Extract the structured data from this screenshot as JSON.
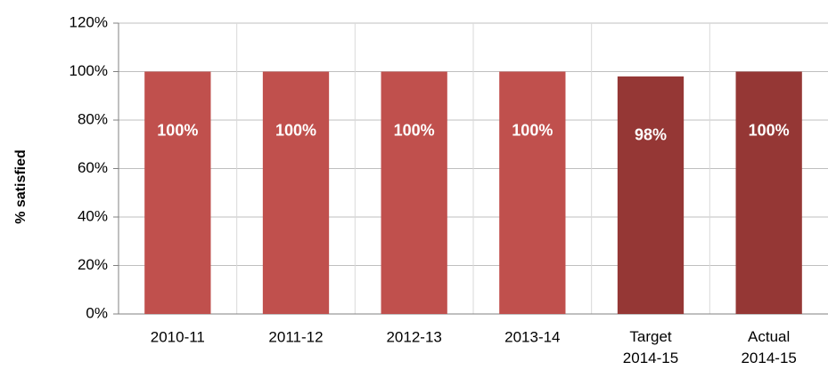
{
  "chart_data": {
    "type": "bar",
    "y_label": "% satisfied",
    "categories": [
      "2010-11",
      "2011-12",
      "2012-13",
      "2013-14",
      "Target 2014-15",
      "Actual 2014-15"
    ],
    "values": [
      100,
      100,
      100,
      100,
      98,
      100
    ],
    "value_labels": [
      "100%",
      "100%",
      "100%",
      "100%",
      "98%",
      "100%"
    ],
    "colors": [
      "#c0504d",
      "#c0504d",
      "#c0504d",
      "#c0504d",
      "#953735",
      "#953735"
    ],
    "ylim": [
      0,
      120
    ],
    "yticks": [
      {
        "value": 0,
        "label": "0%"
      },
      {
        "value": 20,
        "label": "20%"
      },
      {
        "value": 40,
        "label": "40%"
      },
      {
        "value": 60,
        "label": "60%"
      },
      {
        "value": 80,
        "label": "80%"
      },
      {
        "value": 100,
        "label": "100%"
      },
      {
        "value": 120,
        "label": "120%"
      }
    ],
    "grid": true
  }
}
